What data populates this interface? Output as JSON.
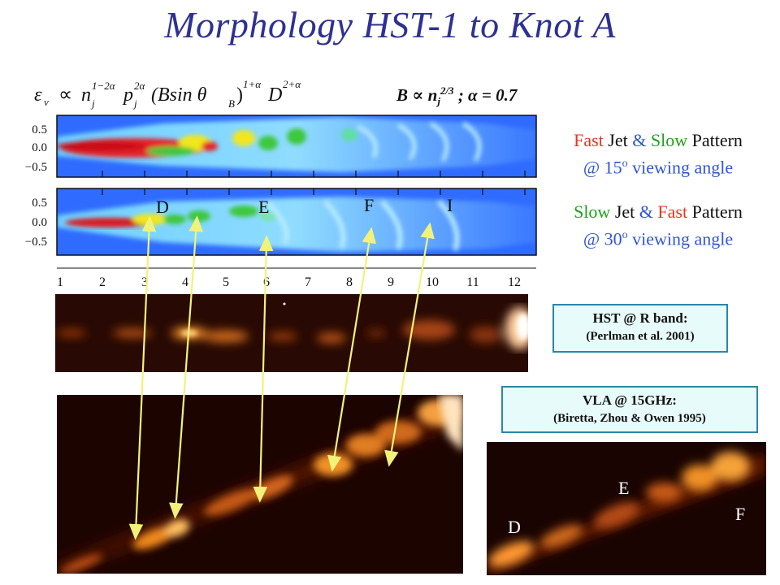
{
  "title": "Morphology HST-1 to Knot A",
  "formula": {
    "eps": "ε",
    "nu": "ν",
    "prop": "∝",
    "n": "n",
    "j": "j",
    "exp_n": "1−2α",
    "p": "p",
    "exp_p": "2α",
    "b_group": "(Bsin θ",
    "b_sub": "B",
    "b_close": ")",
    "exp_b": "1+α",
    "d": "D",
    "exp_d": "2+α"
  },
  "b_relation": {
    "b": "B",
    "prop": "∝",
    "n": "n",
    "sub": "j",
    "exp": "2/3",
    "rest": " ; α = 0.7"
  },
  "sim_yticks": [
    "0.5",
    "0.0",
    "−0.5"
  ],
  "sim_xticks": [
    "1",
    "2",
    "3",
    "4",
    "5",
    "6",
    "7",
    "8",
    "9",
    "10",
    "11",
    "12"
  ],
  "knot_labels_sim": [
    "D",
    "E",
    "F",
    "I"
  ],
  "legend_fast": {
    "w1": "Fast",
    "w2": " Jet ",
    "w3": "&",
    "w4": " Slow",
    "w5": " Pattern",
    "line2": "@ 15",
    "sup": "o",
    "rest": " viewing angle"
  },
  "legend_slow": {
    "w1": "Slow",
    "w2": " Jet ",
    "w3": "&",
    "w4": " Fast",
    "w5": " Pattern",
    "line2": "@ 30",
    "sup": "o",
    "rest": " viewing angle"
  },
  "hst_box": {
    "line1": "HST @ R band:",
    "line2": "(Perlman et al. 2001)"
  },
  "vla_box": {
    "line1": "VLA @ 15GHz:",
    "line2": "(Biretta, Zhou & Owen 1995)"
  },
  "vla_knot_labels": [
    "E",
    "F",
    "D"
  ],
  "colors": {
    "title": "#2e3192",
    "fast": "#e8341c",
    "slow": "#19a319",
    "angle": "#2f55d4",
    "arrow": "#f2f27a",
    "box_border": "#2b86a8",
    "box_fill": "#e8fbfb"
  }
}
